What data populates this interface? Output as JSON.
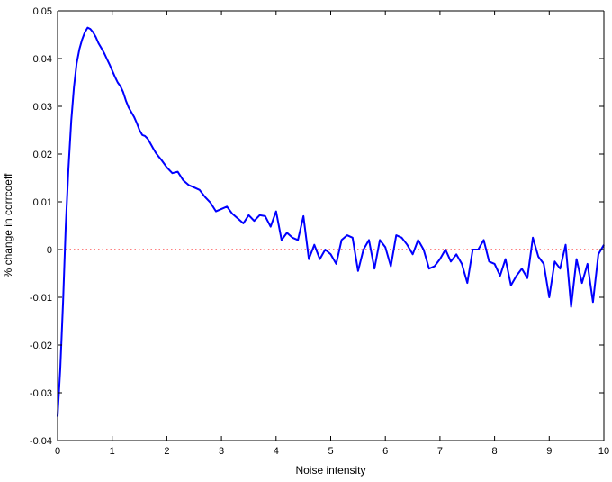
{
  "chart_data": {
    "type": "line",
    "xlabel": "Noise intensity",
    "ylabel": "% change in corrcoeff",
    "xlim": [
      0,
      10
    ],
    "ylim": [
      -0.04,
      0.05
    ],
    "xticks": [
      0,
      1,
      2,
      3,
      4,
      5,
      6,
      7,
      8,
      9,
      10
    ],
    "yticks": [
      -0.04,
      -0.03,
      -0.02,
      -0.01,
      0,
      0.01,
      0.02,
      0.03,
      0.04,
      0.05
    ],
    "xtick_labels": [
      "0",
      "1",
      "2",
      "3",
      "4",
      "5",
      "6",
      "7",
      "8",
      "9",
      "10"
    ],
    "ytick_labels": [
      "-0.04",
      "-0.03",
      "-0.02",
      "-0.01",
      "0",
      "0.01",
      "0.02",
      "0.03",
      "0.04",
      "0.05"
    ],
    "grid": false,
    "line_color": "#0000ff",
    "reference_line": {
      "y": 0,
      "style": "dotted",
      "color": "#ff0000"
    },
    "series": [
      {
        "x": [
          0.0,
          0.05,
          0.1,
          0.15,
          0.2,
          0.25,
          0.3,
          0.35,
          0.4,
          0.45,
          0.5,
          0.55,
          0.6,
          0.65,
          0.7,
          0.75,
          0.8,
          0.85,
          0.9,
          0.95,
          1.0,
          1.05,
          1.1,
          1.15,
          1.2,
          1.25,
          1.3,
          1.35,
          1.4,
          1.45,
          1.5,
          1.55,
          1.6,
          1.65,
          1.7,
          1.75,
          1.8,
          1.85,
          1.9,
          1.95,
          2.0,
          2.1,
          2.2,
          2.3,
          2.4,
          2.5,
          2.6,
          2.7,
          2.8,
          2.9,
          3.0,
          3.1,
          3.2,
          3.3,
          3.4,
          3.5,
          3.6,
          3.7,
          3.8,
          3.9,
          4.0,
          4.1,
          4.2,
          4.3,
          4.4,
          4.5,
          4.6,
          4.7,
          4.8,
          4.9,
          5.0,
          5.1,
          5.2,
          5.3,
          5.4,
          5.5,
          5.6,
          5.7,
          5.8,
          5.9,
          6.0,
          6.1,
          6.2,
          6.3,
          6.4,
          6.5,
          6.6,
          6.7,
          6.8,
          6.9,
          7.0,
          7.1,
          7.2,
          7.3,
          7.4,
          7.5,
          7.6,
          7.7,
          7.8,
          7.9,
          8.0,
          8.1,
          8.2,
          8.3,
          8.4,
          8.5,
          8.6,
          8.7,
          8.8,
          8.9,
          9.0,
          9.1,
          9.2,
          9.3,
          9.4,
          9.5,
          9.6,
          9.7,
          9.8,
          9.9,
          10.0
        ],
        "y": [
          -0.035,
          -0.025,
          -0.011,
          0.005,
          0.017,
          0.027,
          0.034,
          0.039,
          0.042,
          0.044,
          0.0455,
          0.0465,
          0.0462,
          0.0455,
          0.0445,
          0.0432,
          0.0422,
          0.0412,
          0.04,
          0.0388,
          0.0375,
          0.0362,
          0.035,
          0.0342,
          0.033,
          0.0312,
          0.0298,
          0.0288,
          0.0278,
          0.0265,
          0.025,
          0.024,
          0.0238,
          0.0232,
          0.0222,
          0.0212,
          0.0202,
          0.0195,
          0.0188,
          0.018,
          0.0172,
          0.016,
          0.0163,
          0.0145,
          0.0135,
          0.013,
          0.0125,
          0.011,
          0.0098,
          0.008,
          0.0085,
          0.009,
          0.0075,
          0.0065,
          0.0055,
          0.0072,
          0.006,
          0.0072,
          0.007,
          0.0048,
          0.008,
          0.002,
          0.0035,
          0.0025,
          0.002,
          0.007,
          -0.002,
          0.001,
          -0.002,
          0.0,
          -0.001,
          -0.003,
          0.002,
          0.003,
          0.0025,
          -0.0045,
          0.0,
          0.002,
          -0.004,
          0.002,
          0.0005,
          -0.0035,
          0.003,
          0.0025,
          0.001,
          -0.001,
          0.002,
          0.0,
          -0.004,
          -0.0035,
          -0.002,
          0.0,
          -0.0025,
          -0.001,
          -0.003,
          -0.007,
          0.0,
          0.0,
          0.002,
          -0.0025,
          -0.003,
          -0.0055,
          -0.002,
          -0.0075,
          -0.0055,
          -0.004,
          -0.006,
          0.0025,
          -0.0015,
          -0.003,
          -0.01,
          -0.0025,
          -0.004,
          0.001,
          -0.012,
          -0.002,
          -0.007,
          -0.003,
          -0.011,
          -0.001,
          0.001
        ]
      }
    ]
  }
}
